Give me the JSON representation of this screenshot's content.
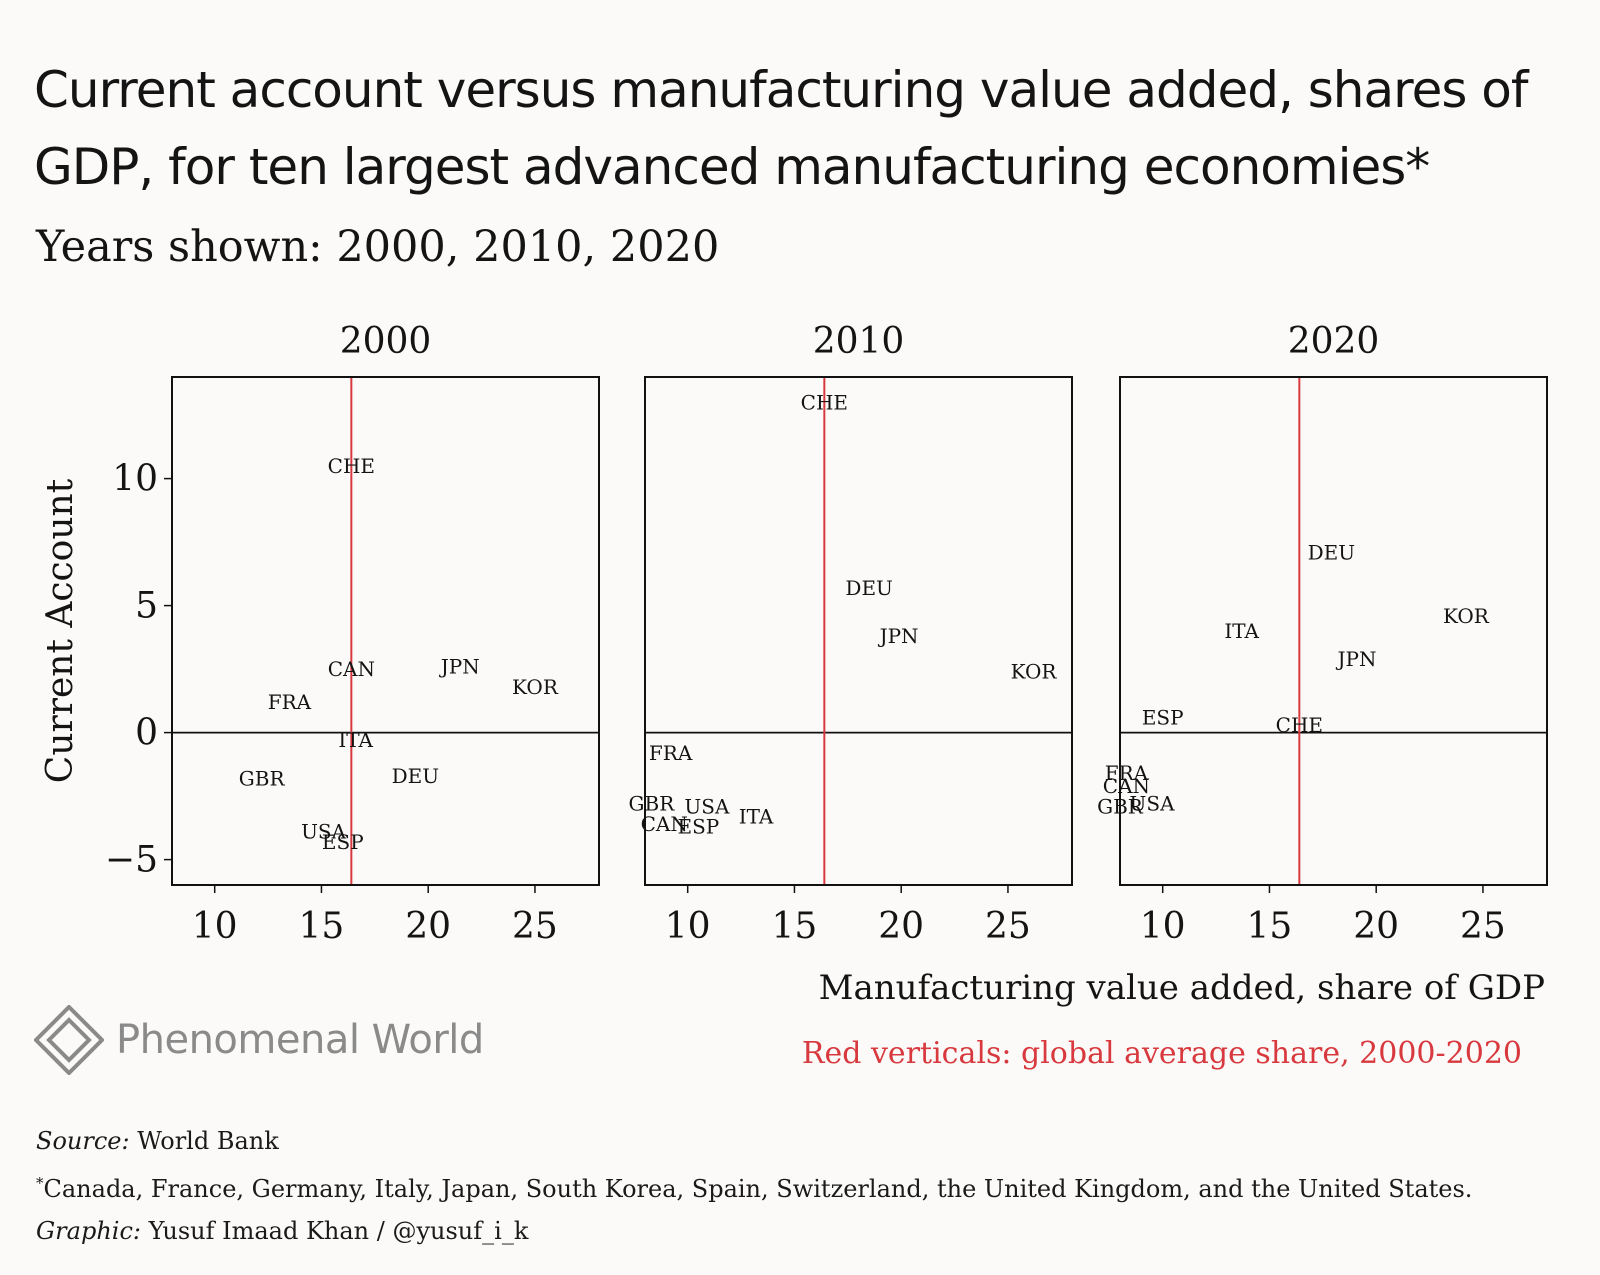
{
  "title": "Current account versus manufacturing value added, shares of GDP, for ten largest advanced manufacturing economies*",
  "subtitle": "Years shown: 2000, 2010, 2020",
  "xlabel": "Manufacturing value added, share of GDP",
  "note": "Red verticals: global average share, 2000-2020",
  "logo": {
    "text": "Phenomenal World",
    "icon": "diamond-logo-icon"
  },
  "footer": {
    "source_label": "Source:",
    "source_value": "World Bank",
    "asterisk": "*",
    "countries_note": "Canada, France, Germany, Italy, Japan, South Korea, Spain, Switzerland, the United Kingdom, and the United States.",
    "graphic_label": "Graphic:",
    "graphic_value": "Yusuf Imaad Khan / @yusuf_i_k"
  },
  "colors": {
    "reference_line": "#d8393e",
    "text": "#141414",
    "background": "#fbfaf8"
  },
  "chart_data": {
    "type": "scatter",
    "ylabel": "Current Account",
    "xlabel": "Manufacturing value added, share of GDP",
    "xlim": [
      8,
      28
    ],
    "ylim": [
      -6,
      14
    ],
    "xticks": [
      10,
      15,
      20,
      25
    ],
    "yticks": [
      -5,
      0,
      5,
      10
    ],
    "ytick_labels": [
      "−5",
      "0",
      "5",
      "10"
    ],
    "reference_x": 16.4,
    "reference_label": "Red verticals: global average share, 2000-2020",
    "panels": [
      {
        "title": "2000",
        "points": [
          {
            "label": "CHE",
            "x": 16.4,
            "y": 10.5
          },
          {
            "label": "CAN",
            "x": 16.4,
            "y": 2.5
          },
          {
            "label": "JPN",
            "x": 21.5,
            "y": 2.6
          },
          {
            "label": "KOR",
            "x": 25.0,
            "y": 1.8
          },
          {
            "label": "FRA",
            "x": 13.5,
            "y": 1.2
          },
          {
            "label": "ITA",
            "x": 16.6,
            "y": -0.3
          },
          {
            "label": "GBR",
            "x": 12.2,
            "y": -1.8
          },
          {
            "label": "DEU",
            "x": 19.4,
            "y": -1.7
          },
          {
            "label": "USA",
            "x": 15.1,
            "y": -3.9
          },
          {
            "label": "ESP",
            "x": 16.0,
            "y": -4.3
          }
        ]
      },
      {
        "title": "2010",
        "points": [
          {
            "label": "CHE",
            "x": 16.4,
            "y": 13.0
          },
          {
            "label": "DEU",
            "x": 18.5,
            "y": 5.7
          },
          {
            "label": "JPN",
            "x": 19.9,
            "y": 3.8
          },
          {
            "label": "KOR",
            "x": 26.2,
            "y": 2.4
          },
          {
            "label": "FRA",
            "x": 9.2,
            "y": -0.8
          },
          {
            "label": "GBR",
            "x": 8.3,
            "y": -2.8
          },
          {
            "label": "USA",
            "x": 10.9,
            "y": -2.9
          },
          {
            "label": "CAN",
            "x": 8.9,
            "y": -3.6
          },
          {
            "label": "ESP",
            "x": 10.5,
            "y": -3.7
          },
          {
            "label": "ITA",
            "x": 13.2,
            "y": -3.3
          }
        ]
      },
      {
        "title": "2020",
        "points": [
          {
            "label": "DEU",
            "x": 17.9,
            "y": 7.1
          },
          {
            "label": "KOR",
            "x": 24.2,
            "y": 4.6
          },
          {
            "label": "ITA",
            "x": 13.7,
            "y": 4.0
          },
          {
            "label": "JPN",
            "x": 19.1,
            "y": 2.9
          },
          {
            "label": "ESP",
            "x": 10.0,
            "y": 0.6
          },
          {
            "label": "CHE",
            "x": 16.4,
            "y": 0.3
          },
          {
            "label": "FRA",
            "x": 8.3,
            "y": -1.6
          },
          {
            "label": "CAN",
            "x": 8.3,
            "y": -2.1
          },
          {
            "label": "GBR",
            "x": 8.0,
            "y": -2.9
          },
          {
            "label": "USA",
            "x": 9.5,
            "y": -2.8
          }
        ]
      }
    ]
  }
}
